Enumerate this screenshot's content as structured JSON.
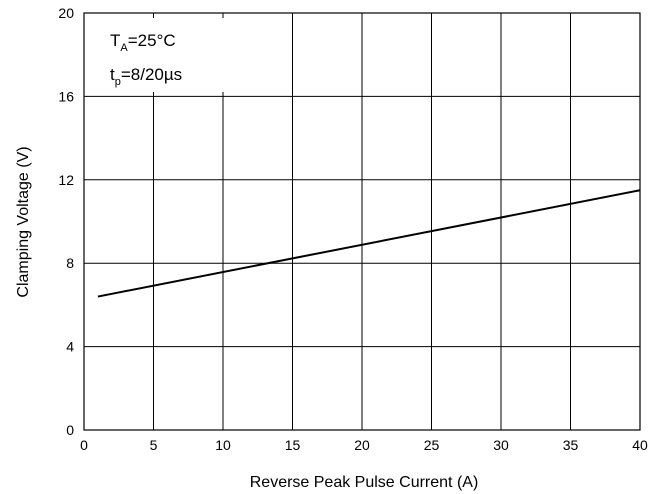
{
  "chart_data": {
    "type": "line",
    "xlabel": "Reverse Peak Pulse Current (A)",
    "ylabel": "Clamping Voltage (V)",
    "xlim": [
      0,
      40
    ],
    "ylim": [
      0,
      20
    ],
    "x_ticks": [
      "0",
      "5",
      "10",
      "15",
      "20",
      "25",
      "30",
      "35",
      "40"
    ],
    "y_ticks": [
      "0",
      "4",
      "8",
      "12",
      "16",
      "20"
    ],
    "grid": true,
    "series": [
      {
        "x": [
          1,
          40
        ],
        "y": [
          6.4,
          11.5
        ],
        "color": "#000000"
      }
    ],
    "annotations": {
      "line1": {
        "main": "T",
        "sub": "A",
        "rest": "=25°C"
      },
      "line2": {
        "main": "t",
        "sub": "p",
        "rest": "=8/20µs"
      }
    }
  }
}
